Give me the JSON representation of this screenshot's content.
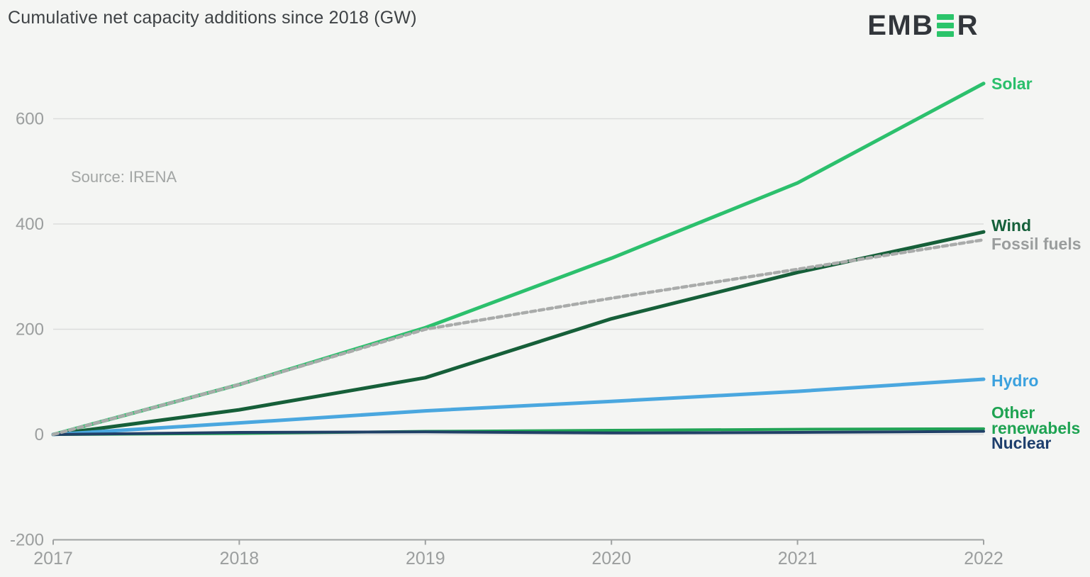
{
  "header": {
    "title": "Cumulative net capacity additions since 2018 (GW)",
    "logo": {
      "pre": "EMB",
      "post": "R",
      "accent_color": "#2bc46a",
      "text_color": "#32363b"
    }
  },
  "source_note": "Source: IRENA",
  "chart_data": {
    "type": "line",
    "title": "Cumulative net capacity additions since 2018 (GW)",
    "unit": "GW",
    "source": "Source: IRENA",
    "x": [
      2017,
      2018,
      2019,
      2020,
      2021,
      2022
    ],
    "x_labels": [
      "2017",
      "2018",
      "2019",
      "2020",
      "2021",
      "2022"
    ],
    "ylim": [
      -200,
      700
    ],
    "yticks": [
      {
        "value": -200,
        "label": "-200"
      },
      {
        "value": 0,
        "label": "0"
      },
      {
        "value": 200,
        "label": "200"
      },
      {
        "value": 400,
        "label": "400"
      },
      {
        "value": 600,
        "label": "600"
      }
    ],
    "grid": "horizontal",
    "legend_position": "right",
    "colors": {
      "gridline": "#dcddDC",
      "axis": "#9fa2a2",
      "tick_label": "#9b9e9e"
    },
    "series": [
      {
        "name": "Solar",
        "label_lines": [
          "Solar"
        ],
        "color": "#2cc06d",
        "label_color": "#2abf6b",
        "style": "solid",
        "width": 5,
        "values": [
          0,
          95,
          203,
          335,
          478,
          667
        ]
      },
      {
        "name": "Wind",
        "label_lines": [
          "Wind"
        ],
        "color": "#165f39",
        "label_color": "#15603a",
        "style": "solid",
        "width": 5,
        "values": [
          0,
          47,
          108,
          220,
          308,
          385
        ]
      },
      {
        "name": "Hydro",
        "label_lines": [
          "Hydro"
        ],
        "color": "#4aa7df",
        "label_color": "#3ba1de",
        "style": "solid",
        "width": 5,
        "values": [
          0,
          22,
          45,
          63,
          82,
          105
        ]
      },
      {
        "name": "Other renewabels",
        "label_lines": [
          "Other",
          "renewabels"
        ],
        "color": "#21a356",
        "label_color": "#1ea352",
        "style": "solid",
        "width": 4,
        "values": [
          0,
          2,
          6,
          8,
          10,
          11
        ]
      },
      {
        "name": "Nuclear",
        "label_lines": [
          "Nuclear"
        ],
        "color": "#214067",
        "label_color": "#1e3f6d",
        "style": "solid",
        "width": 4,
        "values": [
          0,
          4,
          5,
          3,
          4,
          6
        ]
      },
      {
        "name": "Fossil fuels",
        "label_lines": [
          "Fossil fuels"
        ],
        "color": "#a9abaa",
        "label_color": "#9a9d9d",
        "style": "dashed",
        "width": 4.5,
        "values": [
          0,
          95,
          200,
          259,
          314,
          370
        ]
      }
    ]
  }
}
